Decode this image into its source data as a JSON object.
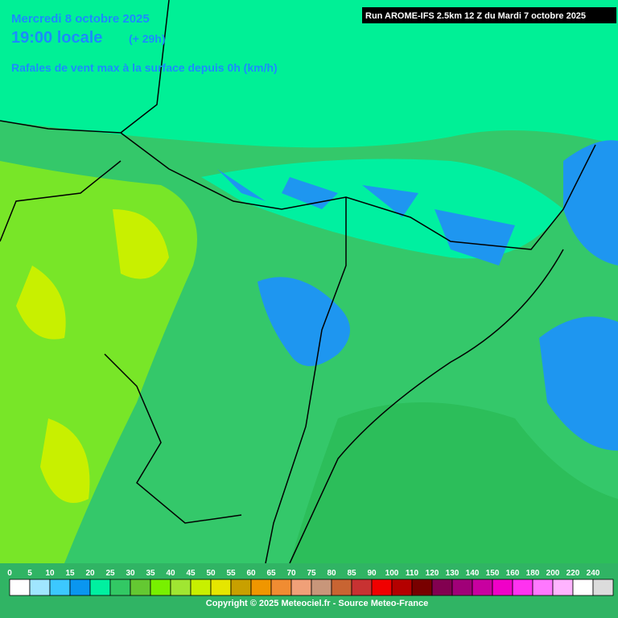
{
  "header": {
    "date": "Mercredi 8 octobre 2025",
    "time": "19:00 locale",
    "lead": "(+ 29h)",
    "subtitle": "Rafales de vent max à la surface depuis 0h (km/h)",
    "run": "Run AROME-IFS 2.5km 12 Z du Mardi 7 octobre 2025"
  },
  "legend": {
    "labels": [
      0,
      5,
      10,
      15,
      20,
      25,
      30,
      35,
      40,
      45,
      50,
      55,
      60,
      65,
      70,
      75,
      80,
      85,
      90,
      100,
      110,
      120,
      130,
      140,
      150,
      160,
      180,
      200,
      220,
      240
    ],
    "colors": [
      "#ffffff",
      "#a0e6ff",
      "#3cc8ff",
      "#0a96f0",
      "#00f0a0",
      "#32c864",
      "#64c832",
      "#78f000",
      "#a0e632",
      "#c8f000",
      "#e6e600",
      "#c8a000",
      "#f09600",
      "#f08c32",
      "#f0a078",
      "#c8967a",
      "#c86432",
      "#c83232",
      "#f00000",
      "#b40000",
      "#780000",
      "#820050",
      "#a00078",
      "#c800a0",
      "#f000c8",
      "#ff32f0",
      "#ff78ff",
      "#ffb4ff",
      "#ffffff",
      "#dcdcdc"
    ]
  },
  "footer": {
    "copyright": "Copyright © 2025 Meteociel.fr - Source Meteo-France"
  }
}
